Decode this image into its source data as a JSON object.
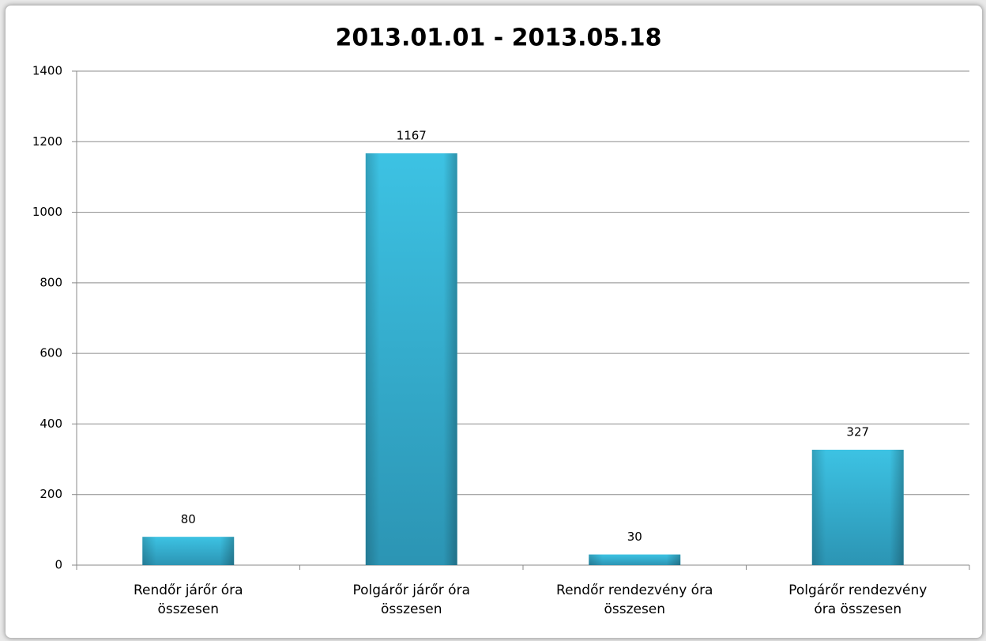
{
  "chart_data": {
    "type": "bar",
    "title": "2013.01.01 - 2013.05.18",
    "categories": [
      "Rendőr járőr óra összesen",
      "Polgárőr járőr óra összesen",
      "Rendőr rendezvény óra összesen",
      "Polgárőr rendezvény óra összesen"
    ],
    "values": [
      80,
      1167,
      30,
      327
    ],
    "color": "#35b3d3",
    "ylim": [
      0,
      1400
    ],
    "yticks": [
      0,
      200,
      400,
      600,
      800,
      1000,
      1200,
      1400
    ],
    "grid": true
  }
}
